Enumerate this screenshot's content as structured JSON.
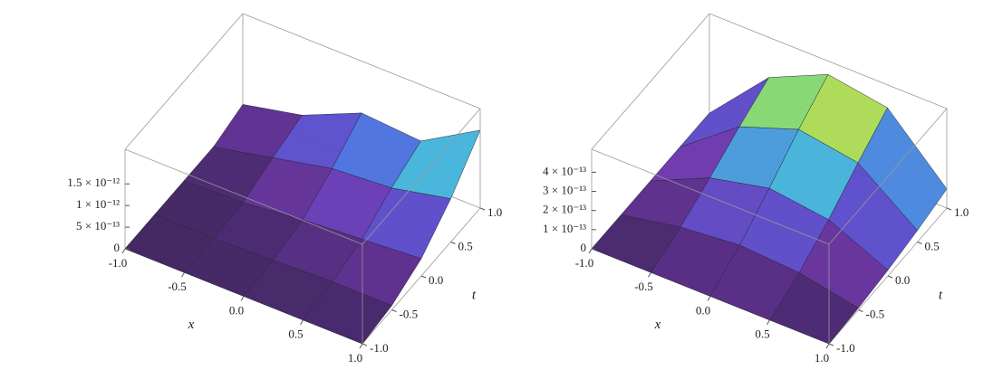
{
  "chart_data": [
    {
      "type": "surface",
      "xlabel": "x",
      "ylabel": "t",
      "xlim": [
        -1,
        1
      ],
      "ylim": [
        -1,
        1
      ],
      "zlim": [
        0,
        2.3e-12
      ],
      "xticks": [
        {
          "value": -1,
          "label": "-1.0"
        },
        -0.5,
        {
          "value": 0,
          "label": "0.0"
        },
        0.5,
        {
          "value": 1,
          "label": "1.0"
        }
      ],
      "yticks": [
        {
          "value": -1,
          "label": "-1.0"
        },
        -0.5,
        {
          "value": 0,
          "label": "0.0"
        },
        0.5,
        {
          "value": 1,
          "label": "1.0"
        }
      ],
      "zticks": [
        0,
        {
          "value": 5e-13,
          "label": "5 × 10⁻¹³"
        },
        {
          "value": 1e-12,
          "label": "1 × 10⁻¹²"
        },
        {
          "value": 1.5e-12,
          "label": "1.5 × 10⁻¹²"
        }
      ],
      "x": [
        -1,
        -0.5,
        0,
        0.5,
        1
      ],
      "t": [
        -1,
        -0.5,
        0,
        0.5,
        1
      ],
      "z": [
        [
          0,
          0,
          0,
          0,
          0
        ],
        [
          0,
          0,
          5e-14,
          1e-13,
          1e-13
        ],
        [
          0,
          5e-14,
          2e-13,
          3e-13,
          4e-13
        ],
        [
          0,
          3e-13,
          6e-13,
          7e-13,
          1e-12
        ],
        [
          2e-13,
          5e-13,
          1.1e-12,
          1e-12,
          1.8e-12
        ]
      ],
      "colormap": [
        "#3a1d5c",
        "#6a2ea8",
        "#4a5be0",
        "#3fb8d8",
        "#8fdc5a",
        "#f2d43a",
        "#e8452a"
      ]
    },
    {
      "type": "surface",
      "xlabel": "x",
      "ylabel": "t",
      "xlim": [
        -1,
        1
      ],
      "ylim": [
        -1,
        1
      ],
      "zlim": [
        0,
        5.2e-13
      ],
      "xticks": [
        {
          "value": -1,
          "label": "-1.0"
        },
        -0.5,
        {
          "value": 0,
          "label": "0.0"
        },
        0.5,
        {
          "value": 1,
          "label": "1.0"
        }
      ],
      "yticks": [
        {
          "value": -1,
          "label": "-1.0"
        },
        -0.5,
        {
          "value": 0,
          "label": "0.0"
        },
        0.5,
        {
          "value": 1,
          "label": "1.0"
        }
      ],
      "zticks": [
        0,
        {
          "value": 1e-13,
          "label": "1 × 10⁻¹³"
        },
        {
          "value": 2e-13,
          "label": "2 × 10⁻¹³"
        },
        {
          "value": 3e-13,
          "label": "3 × 10⁻¹³"
        },
        {
          "value": 4e-13,
          "label": "4 × 10⁻¹³"
        }
      ],
      "x": [
        -1,
        -0.5,
        0,
        0.5,
        1
      ],
      "t": [
        -1,
        -0.5,
        0,
        0.5,
        1
      ],
      "z": [
        [
          0,
          0,
          0,
          0,
          0
        ],
        [
          0,
          6e-14,
          9e-14,
          7e-14,
          1e-14
        ],
        [
          0,
          1.4e-13,
          2.1e-13,
          1.7e-13,
          3e-14
        ],
        [
          0,
          2.3e-13,
          3.4e-13,
          2.9e-13,
          6e-14
        ],
        [
          0,
          3.1e-13,
          4.5e-13,
          4e-13,
          1e-13
        ]
      ],
      "colormap": [
        "#3a1d5c",
        "#6a2ea8",
        "#4a5be0",
        "#3fb8d8",
        "#8fdc5a",
        "#f2d43a",
        "#e8452a"
      ]
    }
  ]
}
